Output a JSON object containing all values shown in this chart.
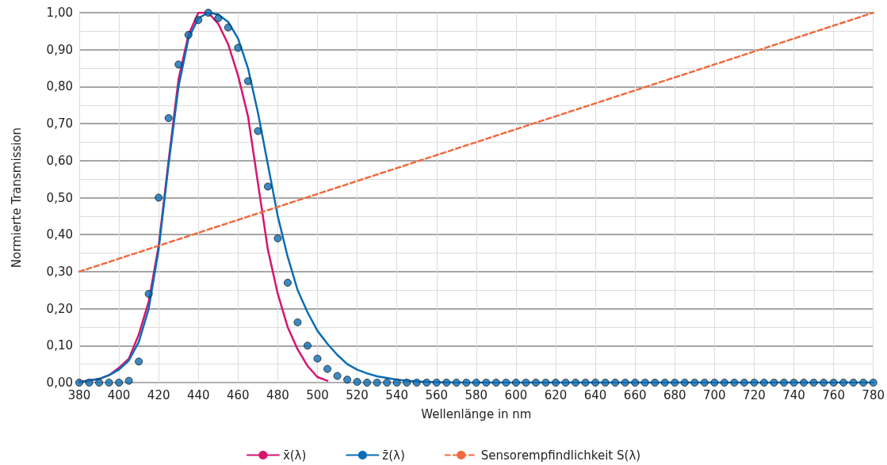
{
  "chart_data": {
    "type": "line",
    "xlabel": "Wellenlänge in nm",
    "ylabel": "Normierte Transmission",
    "xlim": [
      380,
      780
    ],
    "xticks": [
      380,
      400,
      420,
      440,
      460,
      480,
      500,
      520,
      540,
      560,
      580,
      600,
      620,
      640,
      660,
      680,
      700,
      720,
      740,
      760,
      780
    ],
    "ylim": [
      0,
      1
    ],
    "yticks": [
      {
        "value": 0,
        "label": "0,00"
      },
      {
        "value": 0.1,
        "label": "0,10"
      },
      {
        "value": 0.2,
        "label": "0,20"
      },
      {
        "value": 0.3,
        "label": "0,30"
      },
      {
        "value": 0.4,
        "label": "0,40"
      },
      {
        "value": 0.5,
        "label": "0,50"
      },
      {
        "value": 0.6,
        "label": "0,60"
      },
      {
        "value": 0.7,
        "label": "0,70"
      },
      {
        "value": 0.8,
        "label": "0,80"
      },
      {
        "value": 0.9,
        "label": "0,90"
      },
      {
        "value": 1,
        "label": "1,00"
      }
    ],
    "grid": true,
    "legend": "bottom",
    "marker": "none",
    "series": [
      {
        "name": "x̄(λ)",
        "color": "#d6156e",
        "line_style": "solid",
        "x": [
          380,
          390,
          395,
          400,
          405,
          410,
          415,
          420,
          425,
          430,
          435,
          440,
          445,
          450,
          455,
          460,
          465,
          470,
          475,
          480,
          485,
          490,
          495,
          500,
          505
        ],
        "values": [
          0.002,
          0.01,
          0.02,
          0.04,
          0.065,
          0.13,
          0.22,
          0.37,
          0.6,
          0.82,
          0.94,
          1.0,
          1.0,
          0.97,
          0.915,
          0.83,
          0.72,
          0.54,
          0.36,
          0.24,
          0.15,
          0.09,
          0.045,
          0.015,
          0.005
        ]
      },
      {
        "name": "z̄(λ)",
        "color": "#0a6db5",
        "line_style": "solid",
        "x": [
          380,
          390,
          395,
          400,
          405,
          410,
          415,
          420,
          425,
          430,
          435,
          440,
          445,
          450,
          455,
          460,
          465,
          470,
          475,
          480,
          485,
          490,
          495,
          500,
          505,
          510,
          515,
          520,
          525,
          530,
          540,
          550,
          560,
          570,
          600,
          650,
          700,
          750,
          780
        ],
        "values": [
          0.001,
          0.01,
          0.02,
          0.035,
          0.06,
          0.11,
          0.2,
          0.36,
          0.59,
          0.8,
          0.93,
          0.985,
          1.0,
          0.995,
          0.975,
          0.93,
          0.85,
          0.73,
          0.59,
          0.45,
          0.34,
          0.25,
          0.19,
          0.14,
          0.105,
          0.075,
          0.05,
          0.035,
          0.025,
          0.017,
          0.008,
          0.003,
          0.001,
          0,
          0,
          0,
          0,
          0,
          0
        ]
      },
      {
        "name": "Sensorempfindlichkeit S(λ)",
        "color": "#f06a3e",
        "line_style": "dashed",
        "x": [
          380,
          780
        ],
        "values": [
          0.3,
          1.0
        ]
      },
      {
        "type": "scatter",
        "marker": "circle",
        "color": "#0a6db5",
        "x": [
          380,
          385,
          390,
          395,
          400,
          405,
          410,
          415,
          420,
          425,
          430,
          435,
          440,
          445,
          450,
          455,
          460,
          465,
          470,
          475,
          480,
          485,
          490,
          495,
          500,
          505,
          510,
          515,
          520,
          525,
          530,
          535,
          540,
          545,
          550,
          555,
          560,
          565,
          570,
          575,
          580,
          585,
          590,
          595,
          600,
          605,
          610,
          615,
          620,
          625,
          630,
          635,
          640,
          645,
          650,
          655,
          660,
          665,
          670,
          675,
          680,
          685,
          690,
          695,
          700,
          705,
          710,
          715,
          720,
          725,
          730,
          735,
          740,
          745,
          750,
          755,
          760,
          765,
          770,
          775,
          780
        ],
        "values": [
          0,
          0,
          0,
          0,
          0,
          0.005,
          0.057,
          0.24,
          0.5,
          0.715,
          0.86,
          0.94,
          0.98,
          1.0,
          0.985,
          0.96,
          0.905,
          0.815,
          0.68,
          0.53,
          0.39,
          0.27,
          0.163,
          0.1,
          0.065,
          0.037,
          0.018,
          0.008,
          0.002,
          0,
          0,
          0,
          0,
          0,
          0,
          0,
          0,
          0,
          0,
          0,
          0,
          0,
          0,
          0,
          0,
          0,
          0,
          0,
          0,
          0,
          0,
          0,
          0,
          0,
          0,
          0,
          0,
          0,
          0,
          0,
          0,
          0,
          0,
          0,
          0,
          0,
          0,
          0,
          0,
          0,
          0,
          0,
          0,
          0,
          0,
          0,
          0,
          0,
          0,
          0,
          0
        ]
      }
    ]
  }
}
